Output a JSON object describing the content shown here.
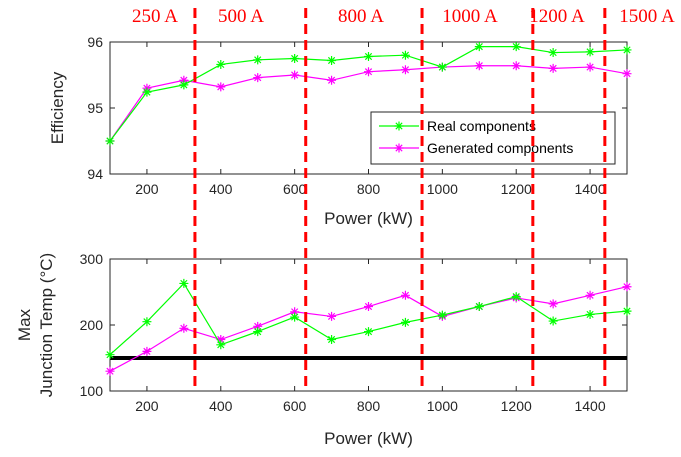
{
  "chart_data": [
    {
      "type": "line",
      "xlabel": "Power (kW)",
      "ylabel": "Efficiency",
      "xlim": [
        100,
        1500
      ],
      "ylim": [
        94,
        96
      ],
      "xticks": [
        200,
        400,
        600,
        800,
        1000,
        1200,
        1400
      ],
      "yticks": [
        94,
        95,
        96
      ],
      "x": [
        100,
        200,
        300,
        400,
        500,
        600,
        700,
        800,
        900,
        1000,
        1100,
        1200,
        1300,
        1400,
        1500
      ],
      "series": [
        {
          "name": "Real components",
          "color": "#00ff00",
          "values": [
            94.5,
            95.24,
            95.35,
            95.66,
            95.73,
            95.75,
            95.72,
            95.78,
            95.8,
            95.62,
            95.93,
            95.93,
            95.84,
            95.85,
            95.88
          ]
        },
        {
          "name": "Generated components",
          "color": "#ff00ff",
          "values": [
            94.5,
            95.3,
            95.42,
            95.32,
            95.46,
            95.5,
            95.42,
            95.55,
            95.58,
            95.62,
            95.64,
            95.64,
            95.6,
            95.62,
            95.52
          ]
        }
      ],
      "legend": "lower-right",
      "grid": false
    },
    {
      "type": "line",
      "xlabel": "Power (kW)",
      "ylabel": [
        "Max",
        "Junction Temp (°C)"
      ],
      "xlim": [
        100,
        1500
      ],
      "ylim": [
        100,
        300
      ],
      "xticks": [
        200,
        400,
        600,
        800,
        1000,
        1200,
        1400
      ],
      "yticks": [
        100,
        200,
        300
      ],
      "x": [
        100,
        200,
        300,
        400,
        500,
        600,
        700,
        800,
        900,
        1000,
        1100,
        1200,
        1300,
        1400,
        1500
      ],
      "series": [
        {
          "name": "Real components",
          "color": "#00ff00",
          "values": [
            155,
            205,
            263,
            170,
            190,
            212,
            178,
            190,
            204,
            215,
            228,
            243,
            206,
            216,
            221
          ]
        },
        {
          "name": "Generated components",
          "color": "#ff00ff",
          "values": [
            130,
            160,
            195,
            178,
            198,
            220,
            213,
            228,
            245,
            213,
            228,
            241,
            232,
            245,
            258
          ]
        }
      ],
      "reference_line": {
        "y": 150,
        "color": "#000000"
      },
      "grid": false
    }
  ],
  "current_boundaries": {
    "color": "#ff0000",
    "x_values": [
      330,
      630,
      945,
      1245,
      1440
    ],
    "labels": [
      "250 A",
      "500 A",
      "800 A",
      "1000 A",
      "1200 A",
      "1500 A"
    ]
  }
}
